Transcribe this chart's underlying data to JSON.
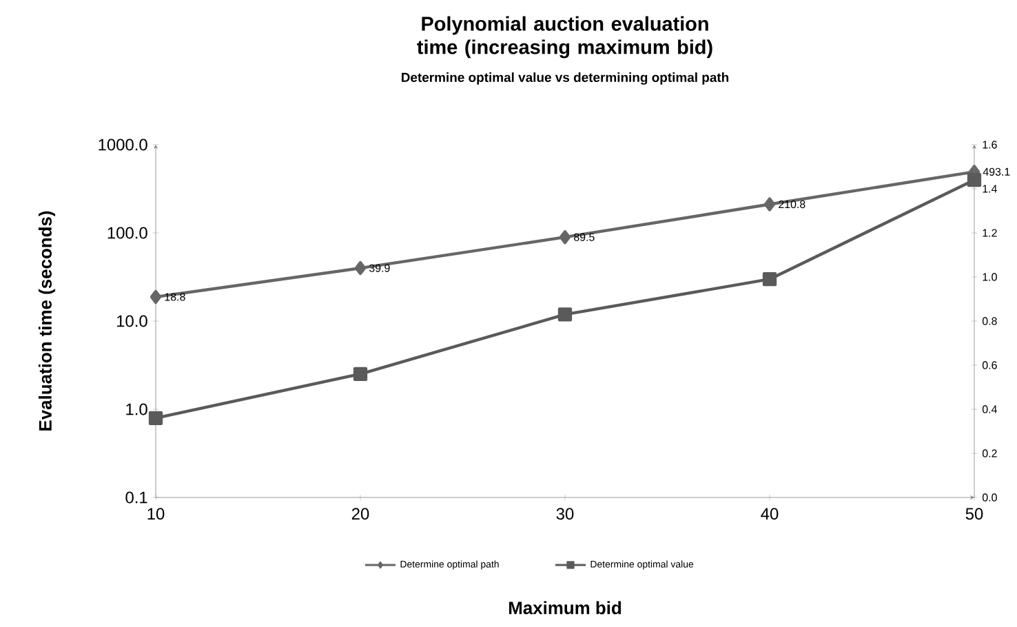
{
  "chart_data": {
    "type": "line",
    "title": "Polynomial auction evaluation time (increasing maximum bid)",
    "subtitle": "Determine optimal value vs determining optimal path",
    "xlabel": "Maximum bid",
    "ylabel": "Evaluation time (seconds)",
    "x": [
      10,
      20,
      30,
      40,
      50
    ],
    "xlim": [
      10,
      50
    ],
    "xticks": [
      10,
      20,
      30,
      40,
      50
    ],
    "ylim": [
      0.1,
      1000
    ],
    "yticks": [
      {
        "value": 0.1,
        "label": "0.1"
      },
      {
        "value": 1,
        "label": "1.0"
      },
      {
        "value": 10,
        "label": "10.0"
      },
      {
        "value": 100,
        "label": "100.0"
      },
      {
        "value": 1000,
        "label": "1000.0"
      }
    ],
    "y2lim": [
      0,
      1.6
    ],
    "y2ticks": [
      {
        "value": 0,
        "label": "0.0"
      },
      {
        "value": 0.2,
        "label": "0.2"
      },
      {
        "value": 0.4,
        "label": "0.4"
      },
      {
        "value": 0.6,
        "label": "0.6"
      },
      {
        "value": 0.8,
        "label": "0.8"
      },
      {
        "value": 1,
        "label": "1.0"
      },
      {
        "value": 1.2,
        "label": "1.2"
      },
      {
        "value": 1.4,
        "label": "1.4"
      },
      {
        "value": 1.6,
        "label": "1.6"
      }
    ],
    "log": "y",
    "grid": false,
    "legend": "bottom",
    "line_style": "solid",
    "series": [
      {
        "name": "Determine optimal path",
        "color": "#666666",
        "marker": "diamond",
        "values": [
          18.8,
          39.9,
          89.5,
          210.8,
          493.1
        ],
        "value_labels": [
          "18.8",
          "39.9",
          "89.5",
          "210.8",
          "493.1"
        ]
      },
      {
        "name": "Determine optimal value",
        "color": "#5a5a5a",
        "marker": "square",
        "axis": "y2",
        "values": [
          0.36,
          0.56,
          0.83,
          0.99,
          1.44
        ]
      }
    ]
  }
}
